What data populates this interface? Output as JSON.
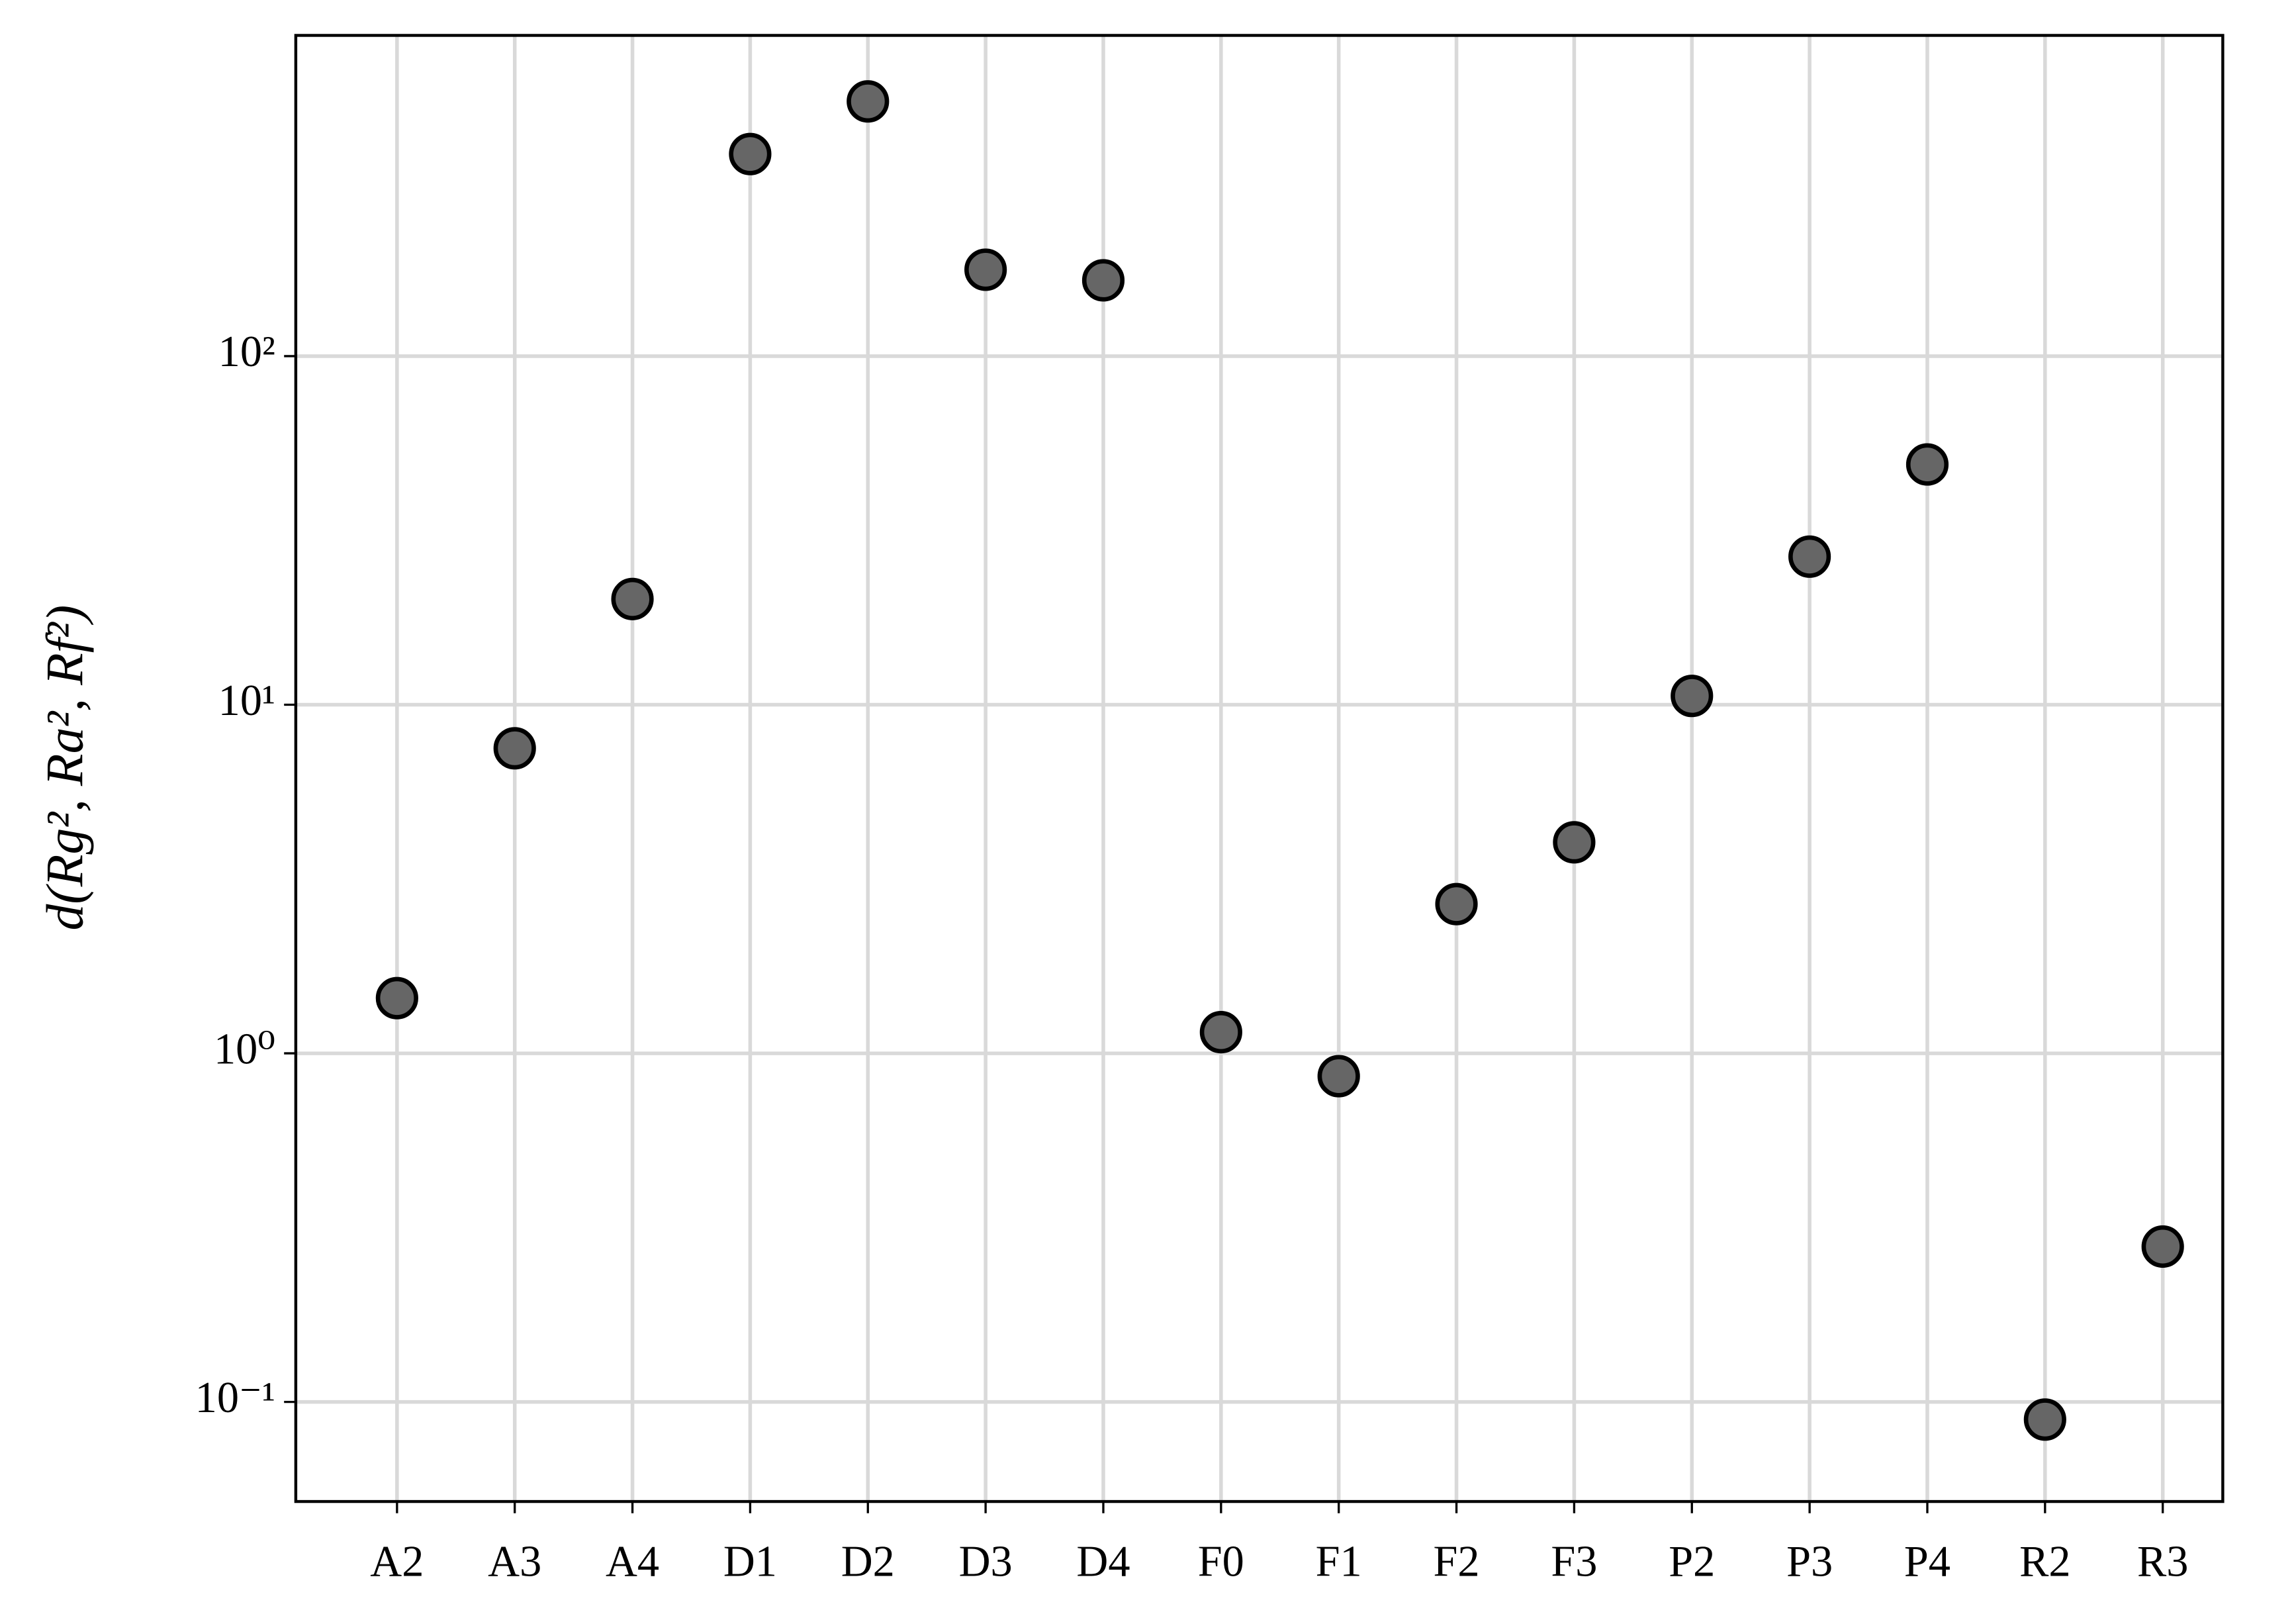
{
  "chart_data": {
    "type": "scatter",
    "ylabel": "d(Rg², Ra², Rf²)",
    "categories": [
      "A2",
      "A3",
      "A4",
      "D1",
      "D2",
      "D3",
      "D4",
      "F0",
      "F1",
      "F2",
      "F3",
      "P2",
      "P3",
      "P4",
      "R2",
      "R3"
    ],
    "values": [
      1.44,
      7.5,
      20.1,
      380,
      538,
      177,
      165,
      1.15,
      0.86,
      2.68,
      4.03,
      10.6,
      26.6,
      48.9,
      0.089,
      0.279
    ],
    "color": "#666666",
    "edgecolor": "#000000",
    "log_y": true,
    "ylim": [
      0.0518,
      832
    ],
    "yticks": [
      {
        "value": 0.1,
        "label": "10⁻¹"
      },
      {
        "value": 1,
        "label": "10⁰"
      },
      {
        "value": 10,
        "label": "10¹"
      },
      {
        "value": 100,
        "label": "10²"
      }
    ],
    "grid": true
  }
}
